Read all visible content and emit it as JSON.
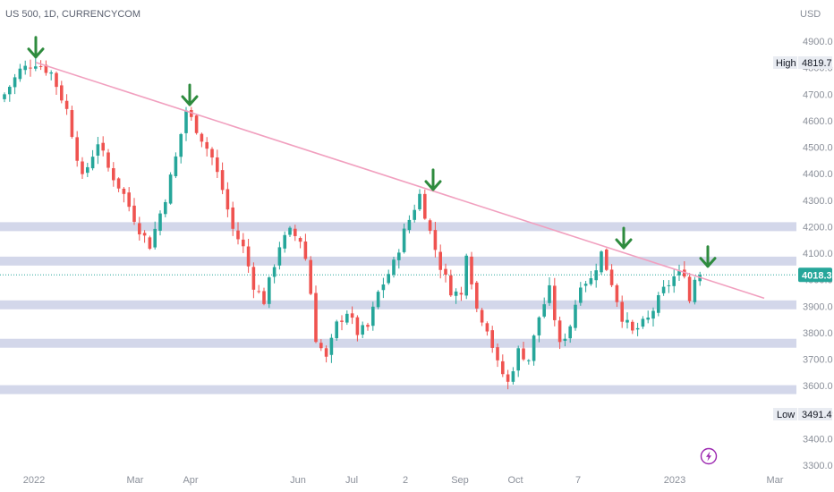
{
  "chart_data": {
    "type": "candlestick",
    "title": "US 500, 1D, CURRENCYCOM",
    "currency": "USD",
    "y_ticks": [
      3300.0,
      3400.0,
      3500.0,
      3600.0,
      3700.0,
      3800.0,
      3900.0,
      4000.0,
      4100.0,
      4200.0,
      4300.0,
      4400.0,
      4500.0,
      4600.0,
      4700.0,
      4800.0,
      4900.0
    ],
    "ylim": [
      3290,
      5000
    ],
    "x_labels": [
      "2022",
      "Mar",
      "Apr",
      "Jun",
      "Jul",
      "2",
      "Sep",
      "Oct",
      "7",
      "2023",
      "Mar"
    ],
    "high": {
      "label": "High",
      "value": "4819.7"
    },
    "low": {
      "label": "Low",
      "value": "3491.4"
    },
    "last_price": "4018.3",
    "support_resistance_zones": [
      4200,
      4070,
      3905,
      3760,
      3585
    ],
    "trendline": {
      "start": [
        0,
        4820
      ],
      "end": [
        145,
        3930
      ],
      "label": ""
    },
    "marked_peaks": [
      [
        6,
        4820
      ],
      [
        35,
        4640
      ],
      [
        80,
        4320
      ],
      [
        115,
        4100
      ],
      [
        131,
        4030
      ]
    ],
    "colors": {
      "up": "#26a69a",
      "down": "#ef5350",
      "zone": "#d3d7ea",
      "trendline": "#f1a0bf",
      "arrow": "#2e8b3e",
      "last_price_bg": "#26a69a",
      "current_line": "#26a69a"
    },
    "anchors": [
      [
        0,
        4700
      ],
      [
        3,
        4790
      ],
      [
        6,
        4820
      ],
      [
        9,
        4780
      ],
      [
        12,
        4640
      ],
      [
        15,
        4380
      ],
      [
        18,
        4520
      ],
      [
        20,
        4420
      ],
      [
        23,
        4320
      ],
      [
        26,
        4190
      ],
      [
        28,
        4130
      ],
      [
        31,
        4310
      ],
      [
        33,
        4460
      ],
      [
        35,
        4640
      ],
      [
        37,
        4570
      ],
      [
        40,
        4460
      ],
      [
        42,
        4340
      ],
      [
        44,
        4190
      ],
      [
        46,
        4120
      ],
      [
        48,
        3980
      ],
      [
        50,
        3920
      ],
      [
        53,
        4130
      ],
      [
        55,
        4180
      ],
      [
        57,
        4150
      ],
      [
        58,
        4080
      ],
      [
        59,
        3950
      ],
      [
        60,
        3780
      ],
      [
        62,
        3700
      ],
      [
        64,
        3830
      ],
      [
        66,
        3880
      ],
      [
        68,
        3800
      ],
      [
        70,
        3820
      ],
      [
        72,
        3950
      ],
      [
        75,
        4060
      ],
      [
        77,
        4180
      ],
      [
        80,
        4320
      ],
      [
        82,
        4180
      ],
      [
        84,
        4050
      ],
      [
        86,
        3960
      ],
      [
        88,
        3940
      ],
      [
        89,
        4110
      ],
      [
        91,
        3890
      ],
      [
        93,
        3820
      ],
      [
        95,
        3680
      ],
      [
        97,
        3610
      ],
      [
        99,
        3730
      ],
      [
        101,
        3700
      ],
      [
        103,
        3860
      ],
      [
        105,
        3960
      ],
      [
        107,
        3750
      ],
      [
        109,
        3830
      ],
      [
        111,
        3990
      ],
      [
        113,
        4000
      ],
      [
        115,
        4100
      ],
      [
        117,
        3990
      ],
      [
        119,
        3860
      ],
      [
        121,
        3800
      ],
      [
        124,
        3850
      ],
      [
        127,
        3960
      ],
      [
        129,
        4010
      ],
      [
        131,
        4030
      ],
      [
        132,
        3920
      ],
      [
        133,
        4005
      ],
      [
        134,
        4018
      ]
    ],
    "candle_count": 135
  },
  "icons": {
    "flash": "flash-icon"
  }
}
